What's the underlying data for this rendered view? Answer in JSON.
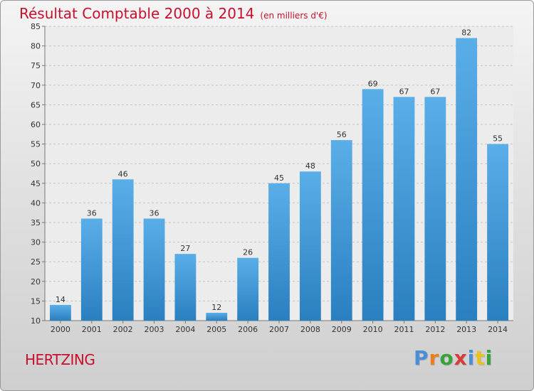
{
  "chart_data": {
    "type": "bar",
    "title": "Résultat Comptable 2000 à 2014",
    "subtitle": "(en milliers d'€)",
    "categories": [
      "2000",
      "2001",
      "2002",
      "2003",
      "2004",
      "2005",
      "2006",
      "2007",
      "2008",
      "2009",
      "2010",
      "2011",
      "2012",
      "2013",
      "2014"
    ],
    "values": [
      14,
      36,
      46,
      36,
      27,
      12,
      26,
      45,
      48,
      56,
      69,
      67,
      67,
      82,
      55
    ],
    "ylim": [
      10,
      85
    ],
    "yticks": [
      10,
      15,
      20,
      25,
      30,
      35,
      40,
      45,
      50,
      55,
      60,
      65,
      70,
      75,
      80,
      85
    ],
    "grid": true,
    "bar_color_top": "#5aaee8",
    "bar_color_bottom": "#2a7fc0"
  },
  "commune": "HERTZING",
  "brand": {
    "text": "Proxiti",
    "colors": [
      "#4a8fd6",
      "#e87e1d",
      "#3aa23a",
      "#d93b3b",
      "#4a8fd6",
      "#e8c21d",
      "#3aa23a"
    ]
  }
}
